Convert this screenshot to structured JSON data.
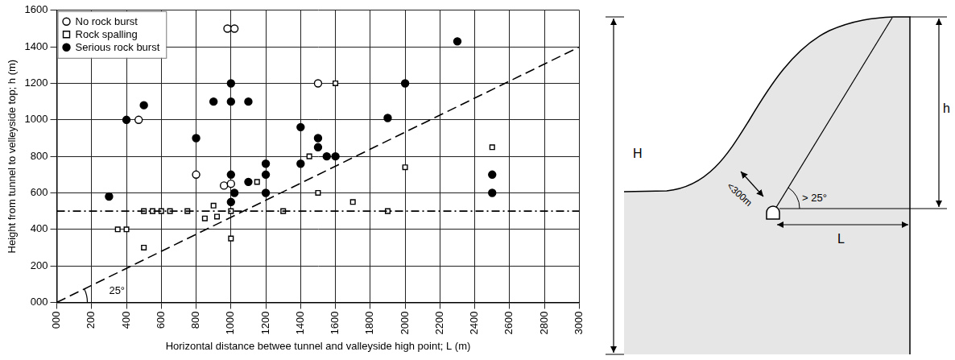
{
  "chart_data": {
    "type": "scatter",
    "x_label": "Horizontal distance betwee tunnel and valleyside high point; L (m)",
    "y_label": "Height from tunnel to velleyside top; h (m)",
    "xlim": [
      0,
      3000
    ],
    "xticks": [
      {
        "value": 0,
        "label": "000"
      },
      200,
      400,
      600,
      800,
      1000,
      1200,
      1400,
      1600,
      1800,
      2000,
      2200,
      2400,
      2600,
      2800,
      3000
    ],
    "ylim": [
      0,
      1600
    ],
    "yticks": [
      {
        "value": 0,
        "label": "000"
      },
      200,
      400,
      600,
      800,
      1000,
      1200,
      1400,
      1600
    ],
    "grid": true,
    "legend": "upper left",
    "series": [
      {
        "name": "No rock burst",
        "color": "#000000",
        "marker": "circle_open",
        "x": [
          470,
          800,
          960,
          1000,
          980,
          1020,
          1500
        ],
        "values": [
          1000,
          700,
          640,
          650,
          1500,
          1500,
          1200
        ]
      },
      {
        "name": "Rock spalling",
        "color": "#000000",
        "marker": "square_open",
        "x": [
          350,
          400,
          500,
          500,
          550,
          600,
          650,
          750,
          850,
          900,
          920,
          1000,
          1000,
          1150,
          1300,
          1450,
          1500,
          1600,
          1700,
          1900,
          2000,
          2500
        ],
        "values": [
          400,
          400,
          300,
          500,
          500,
          500,
          500,
          500,
          460,
          530,
          470,
          350,
          500,
          660,
          500,
          800,
          600,
          1200,
          550,
          500,
          740,
          850
        ]
      },
      {
        "name": "Serious rock burst",
        "color": "#000000",
        "marker": "circle",
        "x": [
          300,
          400,
          500,
          800,
          900,
          1000,
          1000,
          1100,
          1000,
          1000,
          1020,
          1100,
          1200,
          1200,
          1200,
          1400,
          1400,
          1500,
          1500,
          1550,
          1600,
          1900,
          2000,
          2300,
          2500,
          2500
        ],
        "values": [
          580,
          1000,
          1080,
          900,
          1100,
          1200,
          1100,
          1100,
          700,
          550,
          600,
          660,
          600,
          700,
          760,
          960,
          760,
          900,
          850,
          800,
          800,
          1010,
          1200,
          1430,
          700,
          600
        ]
      }
    ],
    "reference_lines": [
      {
        "x": [
          0,
          3000
        ],
        "values": [
          0,
          1399
        ],
        "line_style": "dashed",
        "color": "#000000"
      },
      {
        "x": [
          0,
          3000
        ],
        "values": [
          500,
          500
        ],
        "line_style": "dashdot",
        "color": "#000000"
      }
    ],
    "annotations": [
      {
        "text": "25°",
        "x": 300,
        "y": 60
      }
    ]
  },
  "diagram": {
    "total_height_label": "H",
    "height_label": "h",
    "horizontal_distance_label": "L",
    "cover_label": "<300m",
    "angle_label": "> 25°"
  }
}
